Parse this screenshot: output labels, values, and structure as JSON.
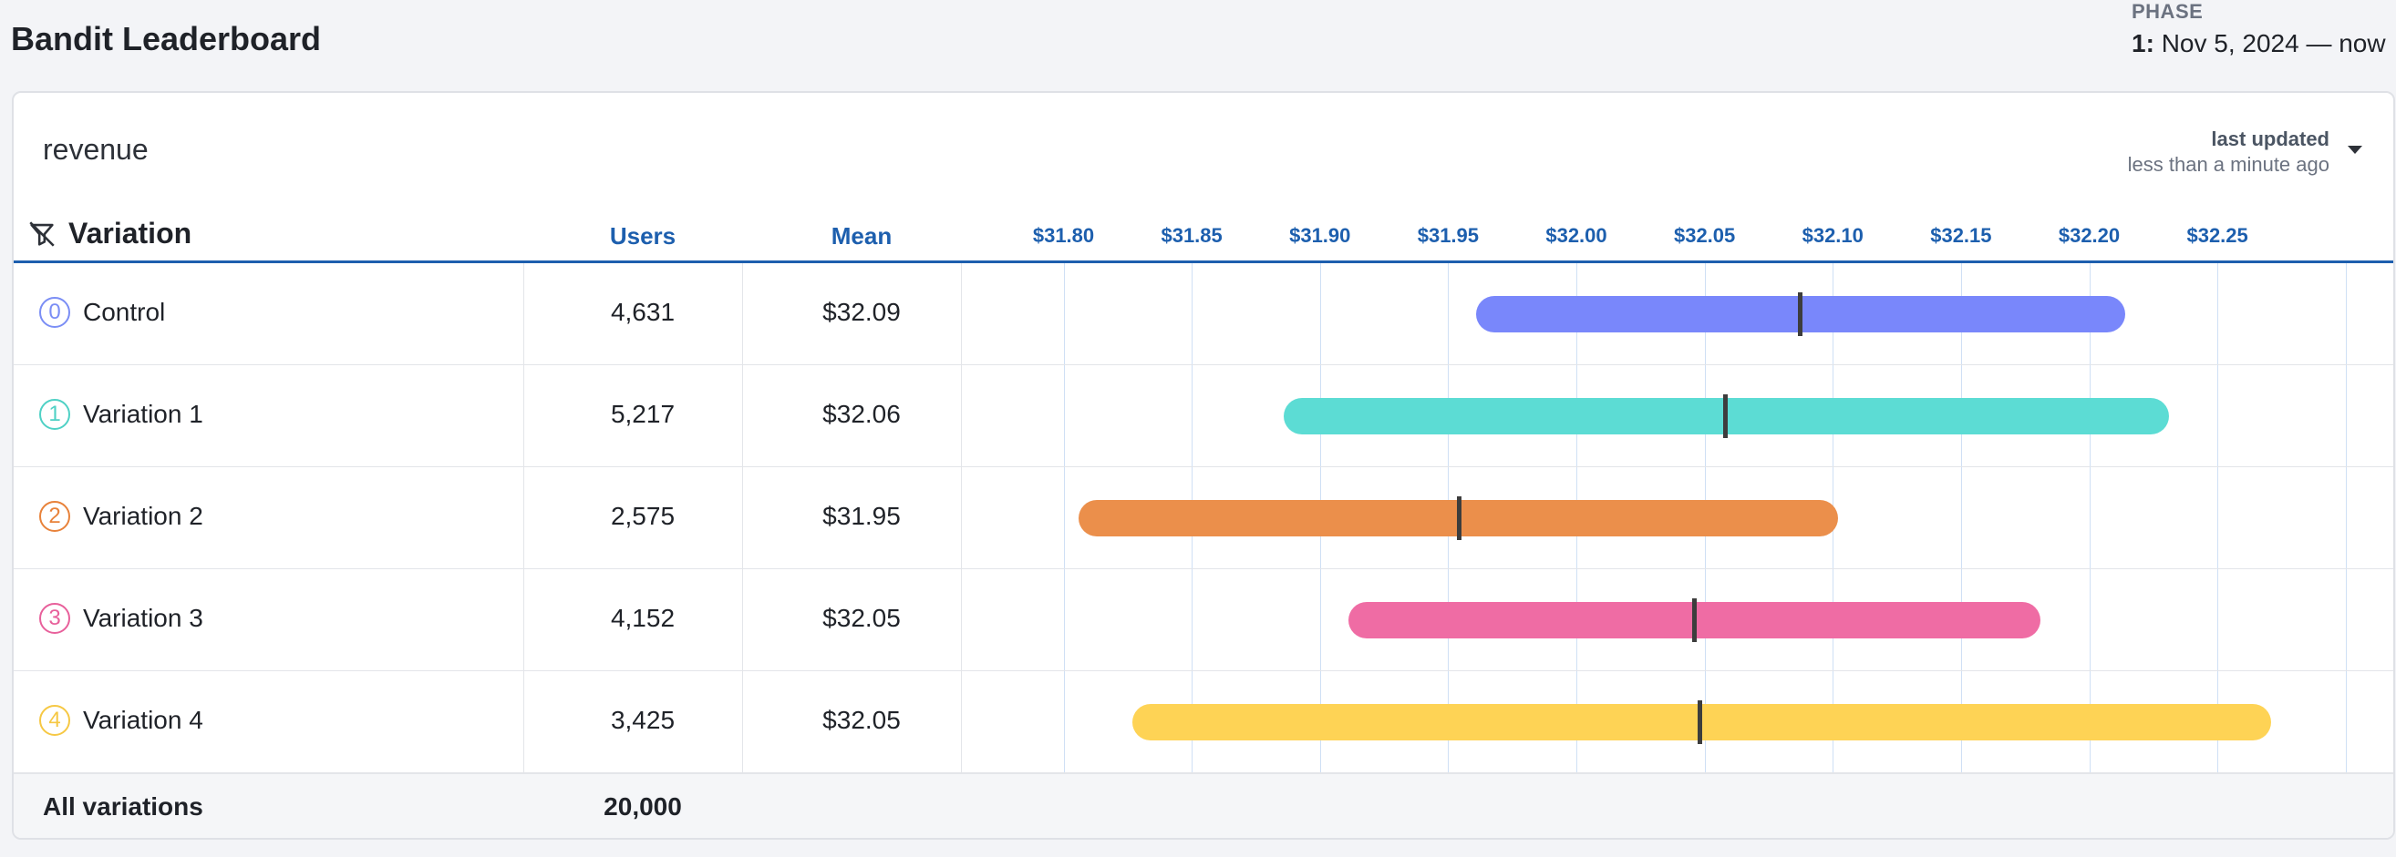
{
  "page": {
    "title": "Bandit Leaderboard"
  },
  "phase": {
    "label": "PHASE",
    "number": "1:",
    "range": "Nov 5, 2024 — now"
  },
  "card": {
    "metric": "revenue",
    "updated_label": "last updated",
    "updated_value": "less than a minute ago"
  },
  "table": {
    "col_variation": "Variation",
    "col_users": "Users",
    "col_mean": "Mean",
    "footer_label": "All variations",
    "footer_users": "20,000"
  },
  "chart_data": {
    "type": "interval",
    "axis": {
      "min": 31.76,
      "max": 32.32,
      "ticks": [
        31.8,
        31.85,
        31.9,
        31.95,
        32.0,
        32.05,
        32.1,
        32.15,
        32.2,
        32.25
      ],
      "tick_labels": [
        "$31.80",
        "$31.85",
        "$31.90",
        "$31.95",
        "$32.00",
        "$32.05",
        "$32.10",
        "$32.15",
        "$32.20",
        "$32.25"
      ]
    },
    "rows": [
      {
        "index": "0",
        "name": "Control",
        "users": "4,631",
        "mean_label": "$32.09",
        "lower": 31.961,
        "upper": 32.214,
        "mean": 32.087,
        "color": "#7987fb",
        "badge_color": "#7b8ef5"
      },
      {
        "index": "1",
        "name": "Variation 1",
        "users": "5,217",
        "mean_label": "$32.06",
        "lower": 31.886,
        "upper": 32.231,
        "mean": 32.058,
        "color": "#5cdcd4",
        "badge_color": "#4fd1c5"
      },
      {
        "index": "2",
        "name": "Variation 2",
        "users": "2,575",
        "mean_label": "$31.95",
        "lower": 31.806,
        "upper": 32.102,
        "mean": 31.954,
        "color": "#eb8f4b",
        "badge_color": "#e8823a"
      },
      {
        "index": "3",
        "name": "Variation 3",
        "users": "4,152",
        "mean_label": "$32.05",
        "lower": 31.911,
        "upper": 32.181,
        "mean": 32.046,
        "color": "#ef6ca4",
        "badge_color": "#e8609b"
      },
      {
        "index": "4",
        "name": "Variation 4",
        "users": "3,425",
        "mean_label": "$32.05",
        "lower": 31.827,
        "upper": 32.271,
        "mean": 32.048,
        "color": "#fed355",
        "badge_color": "#f6c844"
      }
    ]
  }
}
